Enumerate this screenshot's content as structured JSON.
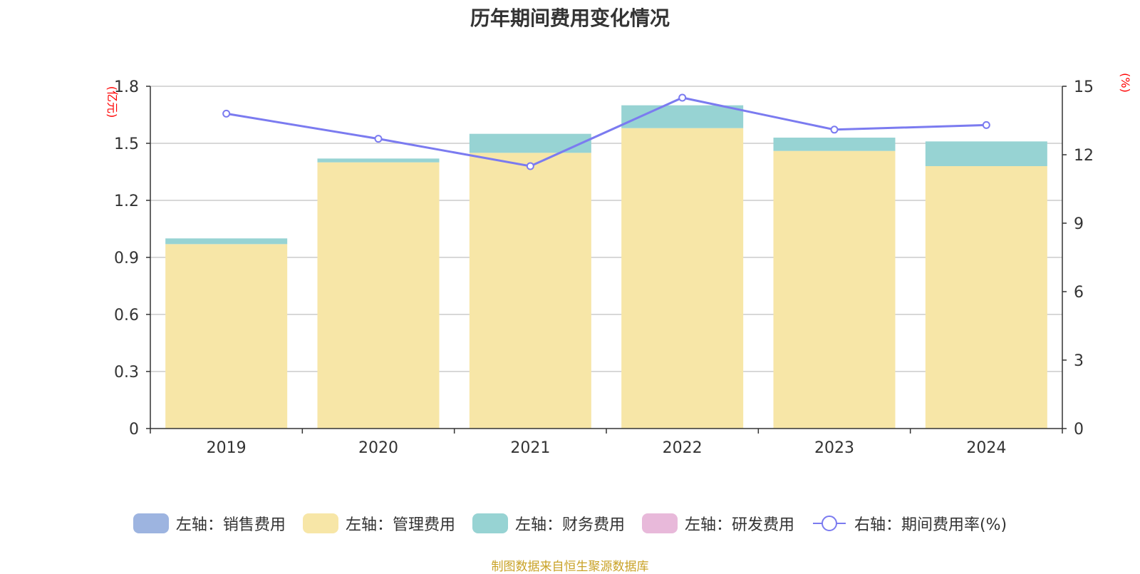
{
  "chart_data": {
    "type": "bar",
    "title": "历年期间费用变化情况",
    "categories": [
      "2019",
      "2020",
      "2021",
      "2022",
      "2023",
      "2024"
    ],
    "left_axis": {
      "unit": "(亿元)",
      "ylim": [
        0,
        1.8
      ],
      "ticks": [
        "0",
        "0.3",
        "0.6",
        "0.9",
        "1.2",
        "1.5",
        "1.8"
      ]
    },
    "right_axis": {
      "unit": "(%)",
      "ylim": [
        0,
        15
      ],
      "ticks": [
        "0",
        "3",
        "6",
        "9",
        "12",
        "15"
      ]
    },
    "series": [
      {
        "name": "左轴：销售费用",
        "type": "bar",
        "stack": true,
        "color": "#9db4e0",
        "values": [
          0,
          0,
          0,
          0,
          0,
          0
        ]
      },
      {
        "name": "左轴：管理费用",
        "type": "bar",
        "stack": true,
        "color": "#f7e6a7",
        "values": [
          0.97,
          1.4,
          1.45,
          1.58,
          1.46,
          1.38
        ]
      },
      {
        "name": "左轴：财务费用",
        "type": "bar",
        "stack": true,
        "color": "#97d3d3",
        "values": [
          0.03,
          0.02,
          0.1,
          0.12,
          0.07,
          0.13
        ]
      },
      {
        "name": "左轴：研发费用",
        "type": "bar",
        "stack": true,
        "color": "#e8b9da",
        "values": [
          0,
          0,
          0,
          0,
          0,
          0
        ]
      },
      {
        "name": "右轴：期间费用率(%)",
        "type": "line",
        "axis": "right",
        "color": "#7b7bf0",
        "values": [
          13.8,
          12.7,
          11.5,
          14.5,
          13.1,
          13.3
        ]
      }
    ],
    "grid": true,
    "legend_position": "bottom"
  },
  "source_note": "制图数据来自恒生聚源数据库"
}
